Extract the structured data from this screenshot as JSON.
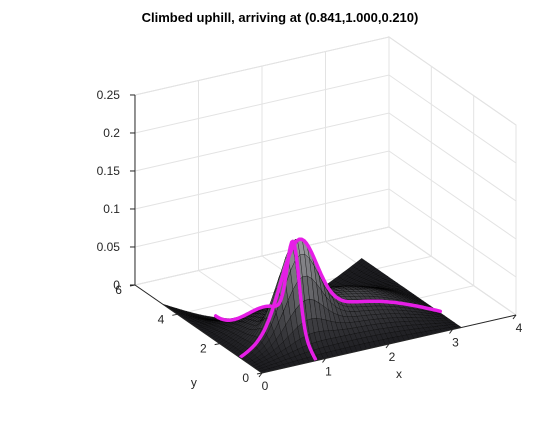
{
  "chart_data": {
    "type": "surface3d",
    "title": "Climbed uphill, arriving at (0.841,1.000,0.210)",
    "xlabel": "x",
    "ylabel": "y",
    "zlabel": "",
    "xlim": [
      0,
      4
    ],
    "ylim": [
      0,
      6
    ],
    "zlim": [
      0,
      0.25
    ],
    "x_ticks": [
      "0",
      "1",
      "2",
      "3",
      "4"
    ],
    "y_ticks": [
      "0",
      "2",
      "4",
      "6"
    ],
    "z_ticks": [
      "0",
      "0.05",
      "0.1",
      "0.15",
      "0.2",
      "0.25"
    ],
    "grid": true,
    "surface": {
      "x_range": [
        0,
        3.14159
      ],
      "y_range": [
        0,
        4.71239
      ],
      "colormap": "gray",
      "peak": {
        "x": 0.841,
        "y": 1.0,
        "z": 0.21
      }
    },
    "paths": [
      {
        "color": "#e61ee6",
        "direction": "increasing x",
        "points": [
          [
            0.0,
            1.0
          ],
          [
            0.841,
            1.0
          ]
        ]
      },
      {
        "color": "#e61ee6",
        "direction": "decreasing x",
        "points": [
          [
            3.1416,
            1.0
          ],
          [
            0.841,
            1.0
          ]
        ]
      },
      {
        "color": "#e61ee6",
        "direction": "increasing y",
        "points": [
          [
            0.841,
            0.0
          ],
          [
            0.841,
            1.0
          ]
        ]
      },
      {
        "color": "#e61ee6",
        "direction": "decreasing y",
        "points": [
          [
            0.841,
            4.712
          ],
          [
            0.841,
            1.0
          ]
        ]
      }
    ]
  }
}
